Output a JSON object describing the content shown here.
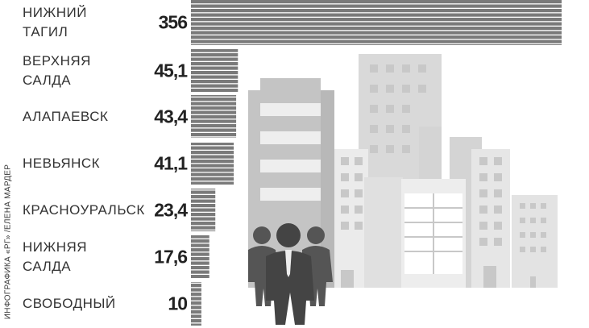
{
  "chart_data": {
    "type": "bar",
    "credit": "ИНФОГРАФИКА «РГ» /ЕЛЕНА МАРДЕР",
    "categories": [
      "НИЖНИЙ\nТАГИЛ",
      "ВЕРХНЯЯ\nСАЛДА",
      "АЛАПАЕВСК",
      "НЕВЬЯНСК",
      "КРАСНОУРАЛЬСК",
      "НИЖНЯЯ\nСАЛДА",
      "СВОБОДНЫЙ"
    ],
    "values": [
      356,
      45.1,
      43.4,
      41.1,
      23.4,
      17.6,
      10
    ],
    "value_labels": [
      "356",
      "45,1",
      "43,4",
      "41,1",
      "23,4",
      "17,6",
      "10"
    ],
    "color": "#7a7a7a"
  }
}
